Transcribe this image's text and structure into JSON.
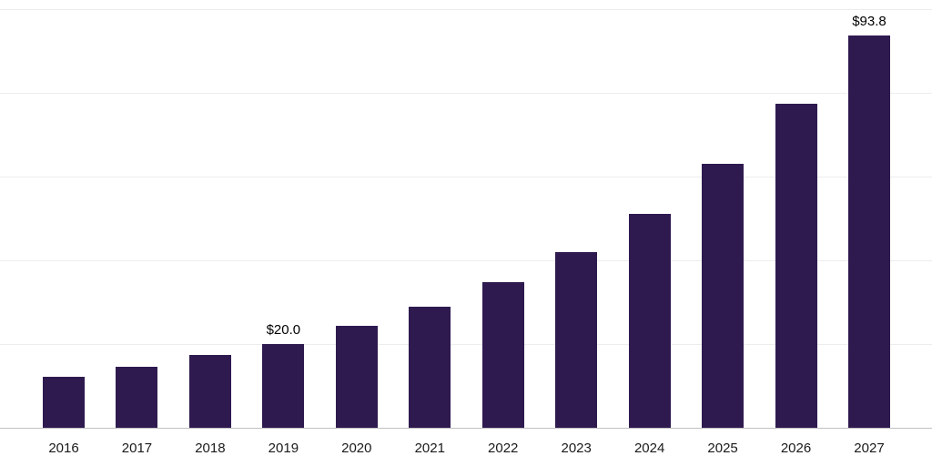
{
  "chart_data": {
    "type": "bar",
    "categories": [
      "2016",
      "2017",
      "2018",
      "2019",
      "2020",
      "2021",
      "2022",
      "2023",
      "2024",
      "2025",
      "2026",
      "2027"
    ],
    "values": [
      12.2,
      14.6,
      17.3,
      20.0,
      24.3,
      29.0,
      34.8,
      42.0,
      51.0,
      63.0,
      77.3,
      93.8
    ],
    "annotations": [
      {
        "category": "2019",
        "text": "$20.0"
      },
      {
        "category": "2027",
        "text": "$93.8"
      }
    ],
    "title": "",
    "xlabel": "",
    "ylabel": "",
    "ylim": [
      0,
      100
    ],
    "gridline_values": [
      20,
      40,
      60,
      80,
      100
    ],
    "grid": true,
    "legend_position": "none",
    "colors": {
      "bar": "#2e1a4f",
      "gridline": "#ededed",
      "axis_line": "#c0c0c0",
      "tick_text": "#1a1a1a",
      "annotation_text": "#000000"
    }
  }
}
